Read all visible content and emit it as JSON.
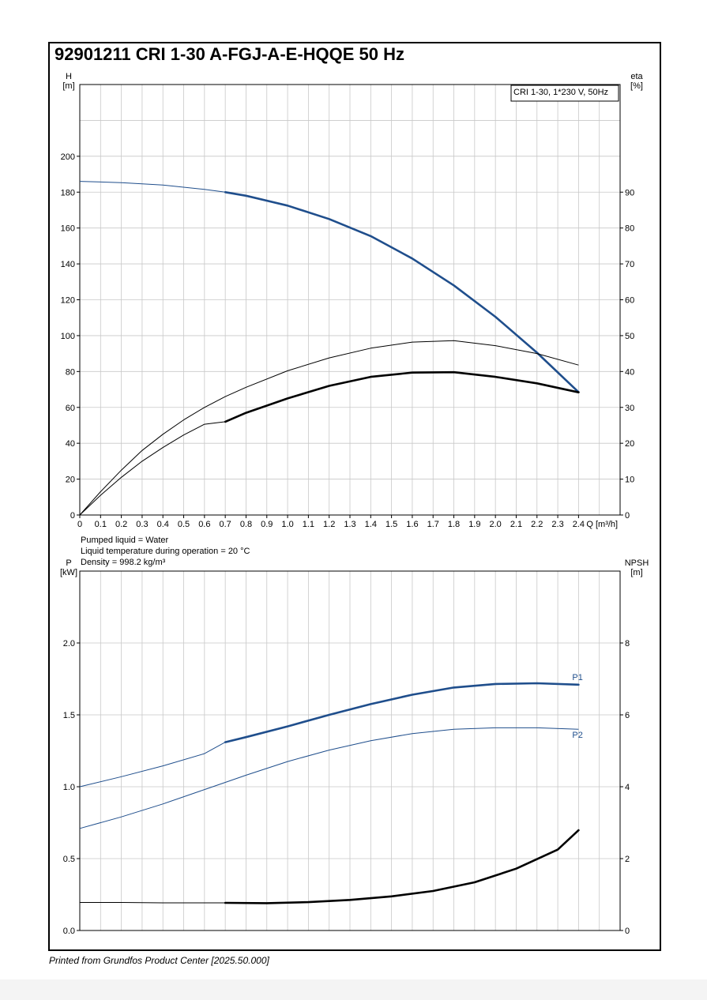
{
  "title": "92901211 CRI 1-30 A-FGJ-A-E-HQQE 50 Hz",
  "footer": "Printed from Grundfos Product Center [2025.50.000]",
  "liquid_info": {
    "line1": "Pumped liquid = Water",
    "line2": "Liquid temperature during operation = 20 °C",
    "line3": "Density = 998.2 kg/m³"
  },
  "colors": {
    "blue": "#1f4e8c",
    "black": "#000000",
    "grid": "#c8c8c8"
  },
  "chart_data": [
    {
      "type": "line",
      "legend_box": "CRI 1-30, 1*230 V, 50Hz",
      "legend_placement": "top-right",
      "grid": true,
      "x_label": "Q [m³/h]",
      "x_ticks": [
        "0",
        "0.1",
        "0.2",
        "0.3",
        "0.4",
        "0.5",
        "0.6",
        "0.7",
        "0.8",
        "0.9",
        "1.0",
        "1.1",
        "1.2",
        "1.3",
        "1.4",
        "1.5",
        "1.6",
        "1.7",
        "1.8",
        "1.9",
        "2.0",
        "2.1",
        "2.2",
        "2.3",
        "2.4"
      ],
      "xlim": [
        0,
        2.6
      ],
      "y_left_label": {
        "name": "H",
        "unit": "[m]"
      },
      "y_left_ticks": [
        "0",
        "20",
        "40",
        "60",
        "80",
        "100",
        "120",
        "140",
        "160",
        "180",
        "200"
      ],
      "y_left_lim": [
        0,
        240
      ],
      "y_right_label": {
        "name": "eta",
        "unit": "[%]"
      },
      "y_right_ticks": [
        "0",
        "10",
        "20",
        "30",
        "40",
        "50",
        "60",
        "70",
        "80",
        "90"
      ],
      "y_right_lim": [
        0,
        120
      ],
      "series": [
        {
          "axis": "left",
          "color": "#1f4e8c",
          "bold_from": 0.7,
          "x": [
            0,
            0.2,
            0.4,
            0.6,
            0.7,
            0.8,
            1.0,
            1.2,
            1.4,
            1.6,
            1.8,
            2.0,
            2.2,
            2.4
          ],
          "y": [
            186,
            185.3,
            184,
            181.5,
            180,
            178,
            172.5,
            165,
            155.5,
            143,
            128,
            110.5,
            90.5,
            68.5
          ]
        },
        {
          "axis": "right",
          "color": "#000000",
          "bold_from": 99,
          "x": [
            0,
            0.1,
            0.2,
            0.3,
            0.4,
            0.5,
            0.6,
            0.7,
            0.8,
            1.0,
            1.2,
            1.4,
            1.6,
            1.8,
            2.0,
            2.2,
            2.4
          ],
          "y": [
            0,
            6.5,
            12.5,
            18,
            22.5,
            26.5,
            30,
            33,
            35.6,
            40.2,
            43.8,
            46.5,
            48.2,
            48.6,
            47.2,
            45,
            41.8
          ]
        },
        {
          "axis": "right",
          "color": "#000000",
          "bold_from": 0.7,
          "x": [
            0,
            0.1,
            0.2,
            0.3,
            0.4,
            0.5,
            0.6,
            0.7,
            0.8,
            1.0,
            1.2,
            1.4,
            1.6,
            1.8,
            2.0,
            2.2,
            2.4
          ],
          "y": [
            0,
            5.5,
            10.5,
            15,
            18.8,
            22.3,
            25.3,
            26,
            28.5,
            32.5,
            36,
            38.5,
            39.7,
            39.8,
            38.5,
            36.7,
            34.2
          ]
        }
      ]
    },
    {
      "type": "line",
      "grid": true,
      "xlim": [
        0,
        2.6
      ],
      "y_left_label": {
        "name": "P",
        "unit": "[kW]"
      },
      "y_left_ticks": [
        "0.0",
        "0.5",
        "1.0",
        "1.5",
        "2.0"
      ],
      "y_left_lim": [
        0,
        2.5
      ],
      "y_right_label": {
        "name": "NPSH",
        "unit": "[m]"
      },
      "y_right_ticks": [
        "0",
        "2",
        "4",
        "6",
        "8"
      ],
      "y_right_lim": [
        0,
        10
      ],
      "series": [
        {
          "name": "P1",
          "axis": "left",
          "color": "#1f4e8c",
          "bold_from": 0.7,
          "x": [
            0,
            0.2,
            0.4,
            0.6,
            0.7,
            0.8,
            1.0,
            1.2,
            1.4,
            1.6,
            1.8,
            2.0,
            2.2,
            2.4
          ],
          "y": [
            1.0,
            1.07,
            1.145,
            1.23,
            1.31,
            1.345,
            1.42,
            1.5,
            1.575,
            1.64,
            1.69,
            1.715,
            1.72,
            1.71
          ]
        },
        {
          "name": "P2",
          "axis": "left",
          "color": "#1f4e8c",
          "bold_from": 99,
          "x": [
            0,
            0.2,
            0.4,
            0.6,
            0.7,
            0.8,
            1.0,
            1.2,
            1.4,
            1.6,
            1.8,
            2.0,
            2.2,
            2.4
          ],
          "y": [
            0.71,
            0.79,
            0.88,
            0.98,
            1.03,
            1.08,
            1.175,
            1.255,
            1.32,
            1.37,
            1.4,
            1.41,
            1.41,
            1.4
          ]
        },
        {
          "axis": "right",
          "color": "#000000",
          "bold_from": 0.7,
          "x": [
            0,
            0.2,
            0.4,
            0.6,
            0.7,
            0.9,
            1.1,
            1.3,
            1.5,
            1.7,
            1.9,
            2.1,
            2.3,
            2.4
          ],
          "y": [
            0.78,
            0.78,
            0.77,
            0.77,
            0.77,
            0.76,
            0.79,
            0.85,
            0.95,
            1.1,
            1.34,
            1.72,
            2.25,
            2.79
          ]
        }
      ]
    }
  ]
}
